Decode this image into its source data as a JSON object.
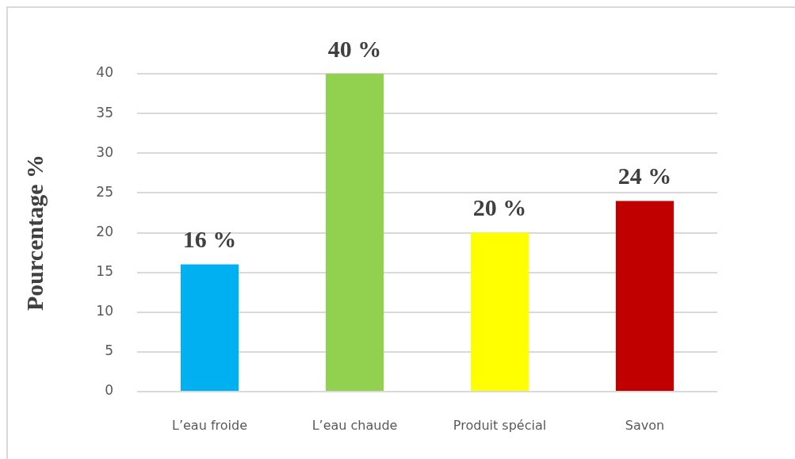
{
  "chart_data": {
    "type": "bar",
    "ylabel": "Pourcentage %",
    "categories": [
      "L’eau froide",
      "L’eau chaude",
      "Produit spécial",
      "Savon"
    ],
    "values": [
      16,
      40,
      20,
      24
    ],
    "colors": [
      "#00b0f0",
      "#92d050",
      "#ffff00",
      "#c00000"
    ],
    "value_labels": [
      "16 %",
      "40 %",
      "20 %",
      "24 %"
    ],
    "ylim": [
      0,
      40
    ],
    "yticks": [
      0,
      5,
      10,
      15,
      20,
      25,
      30,
      35,
      40
    ],
    "grid": "y"
  }
}
